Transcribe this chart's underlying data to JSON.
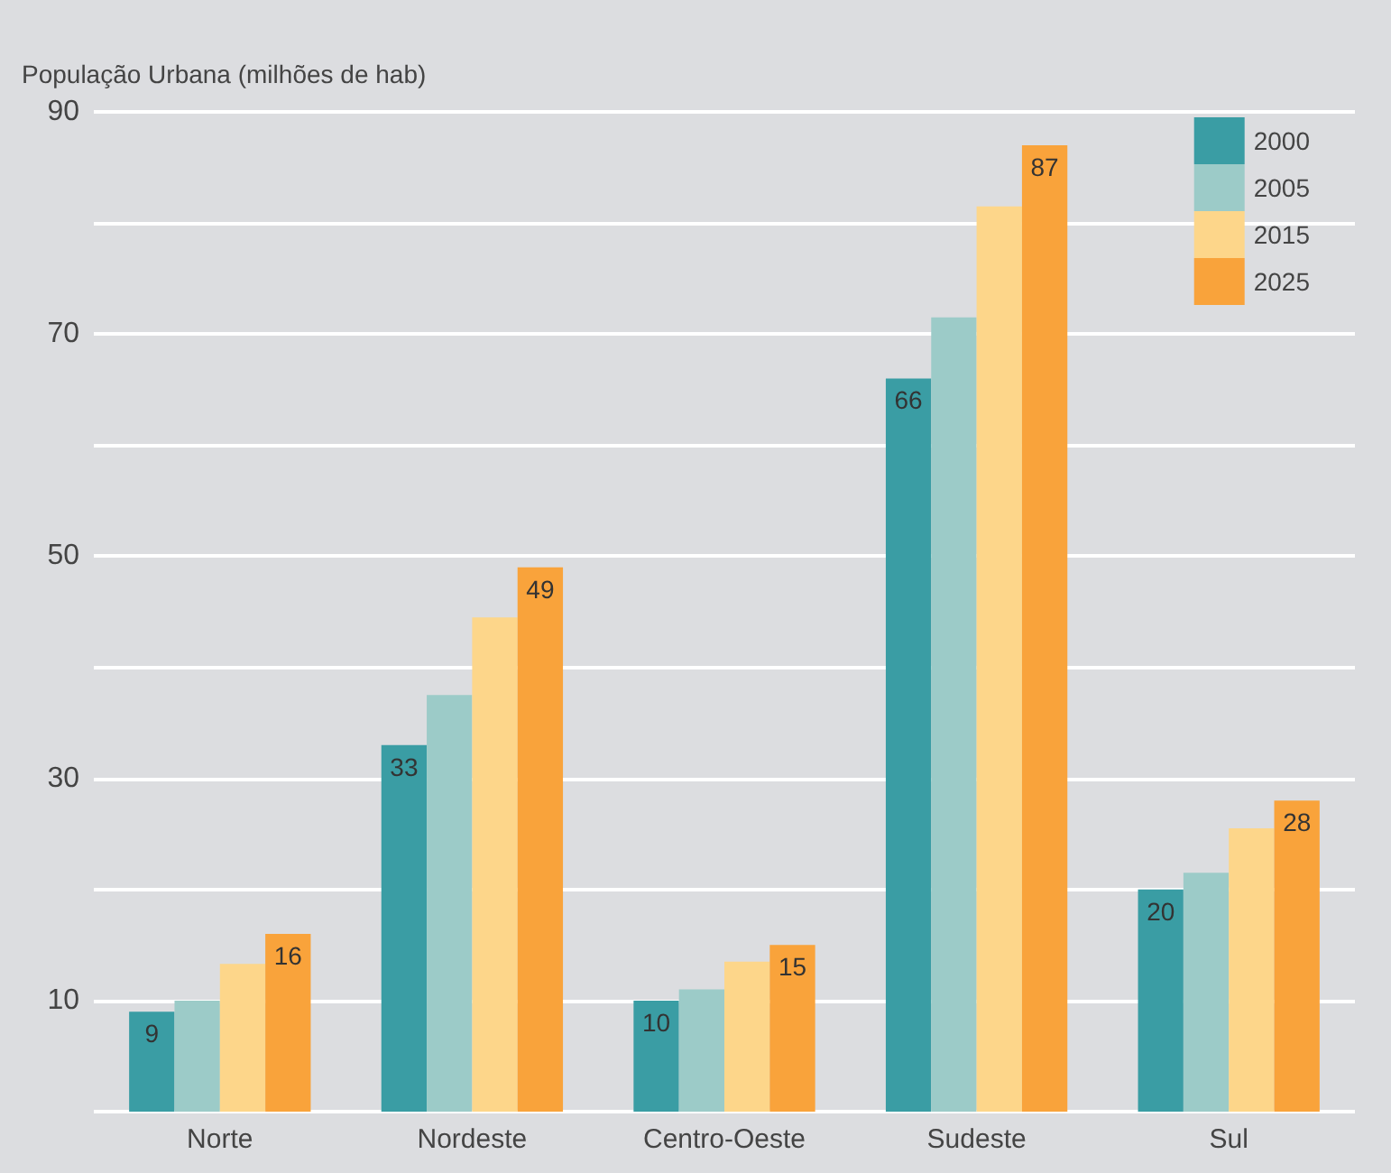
{
  "chart_data": {
    "type": "bar",
    "ylabel": "População Urbana (milhões de hab)",
    "categories": [
      "Norte",
      "Nordeste",
      "Centro-Oeste",
      "Sudeste",
      "Sul"
    ],
    "series": [
      {
        "name": "2000",
        "color": "#3a9da4",
        "values": [
          9,
          33,
          10,
          66,
          20
        ],
        "value_labels": [
          "9",
          "33",
          "10",
          "66",
          "20"
        ]
      },
      {
        "name": "2005",
        "color": "#9ccbc8",
        "values": [
          10,
          37.5,
          11,
          71.5,
          21.5
        ]
      },
      {
        "name": "2015",
        "color": "#fdd68a",
        "values": [
          13.3,
          44.5,
          13.5,
          81.5,
          25.5
        ]
      },
      {
        "name": "2025",
        "color": "#f9a33b",
        "values": [
          16,
          49,
          15,
          87,
          28
        ],
        "value_labels": [
          "16",
          "49",
          "15",
          "87",
          "28"
        ]
      }
    ],
    "ylim": [
      0,
      90
    ],
    "yticks": [
      {
        "value": 0,
        "label": null
      },
      10,
      {
        "value": 20,
        "label": null
      },
      30,
      {
        "value": 40,
        "label": null
      },
      50,
      {
        "value": 60,
        "label": null
      },
      70,
      {
        "value": 80,
        "label": null
      },
      90
    ],
    "grid": "y",
    "legend": "top right"
  }
}
